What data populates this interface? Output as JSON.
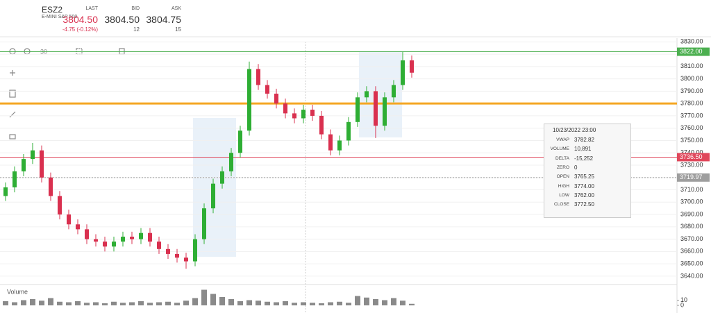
{
  "header": {
    "symbol": "ESZ2",
    "description": "E-MINI S&P 500",
    "last_label": "LAST",
    "last": "3804.50",
    "change": "-4.75 (-0.12%)",
    "bid_label": "BID",
    "bid": "3804.50",
    "bid_size": "12",
    "ask_label": "ASK",
    "ask": "3804.75",
    "ask_size": "15"
  },
  "toolbar": {
    "interval": "30"
  },
  "tooltip": {
    "date": "10/23/2022 23:00",
    "rows": [
      {
        "label": "VWAP",
        "value": "3782.82"
      },
      {
        "label": "VOLUME",
        "value": "10,891"
      },
      {
        "label": "DELTA",
        "value": "-15,252"
      },
      {
        "label": "ZERO",
        "value": "0"
      },
      {
        "label": "OPEN",
        "value": "3765.25"
      },
      {
        "label": "HIGH",
        "value": "3774.00"
      },
      {
        "label": "LOW",
        "value": "3762.00"
      },
      {
        "label": "CLOSE",
        "value": "3772.50"
      }
    ]
  },
  "chart_data": {
    "type": "candlestick",
    "up_color": "#2eae34",
    "down_color": "#d9304f",
    "open": [
      3705,
      3712,
      3725,
      3735,
      3742,
      3720,
      3705,
      3690,
      3682,
      3678,
      3670,
      3668,
      3664,
      3668,
      3672,
      3670,
      3675,
      3668,
      3662,
      3658,
      3655,
      3652,
      3670,
      3695,
      3715,
      3725,
      3740,
      3758,
      3808,
      3795,
      3788,
      3780,
      3772,
      3768,
      3775,
      3770,
      3755,
      3742,
      3750,
      3765,
      3785,
      3790,
      3762,
      3785,
      3795,
      3815
    ],
    "high": [
      3716,
      3729,
      3739,
      3748,
      3746,
      3724,
      3709,
      3694,
      3686,
      3682,
      3674,
      3672,
      3672,
      3676,
      3676,
      3679,
      3679,
      3672,
      3666,
      3662,
      3659,
      3674,
      3699,
      3719,
      3729,
      3744,
      3762,
      3814,
      3812,
      3799,
      3792,
      3784,
      3776,
      3779,
      3779,
      3774,
      3759,
      3754,
      3769,
      3789,
      3794,
      3794,
      3789,
      3799,
      3822,
      3819
    ],
    "low": [
      3701,
      3708,
      3721,
      3731,
      3716,
      3701,
      3686,
      3678,
      3674,
      3666,
      3664,
      3660,
      3660,
      3664,
      3666,
      3666,
      3664,
      3658,
      3654,
      3651,
      3646,
      3648,
      3666,
      3691,
      3711,
      3721,
      3736,
      3754,
      3791,
      3784,
      3776,
      3768,
      3764,
      3764,
      3766,
      3751,
      3738,
      3738,
      3746,
      3761,
      3781,
      3752,
      3758,
      3781,
      3791,
      3801
    ],
    "close": [
      3712,
      3725,
      3735,
      3742,
      3720,
      3705,
      3690,
      3682,
      3678,
      3670,
      3668,
      3664,
      3668,
      3672,
      3670,
      3675,
      3668,
      3662,
      3658,
      3655,
      3652,
      3670,
      3695,
      3715,
      3725,
      3740,
      3758,
      3808,
      3795,
      3788,
      3780,
      3772,
      3768,
      3775,
      3770,
      3755,
      3742,
      3750,
      3765,
      3785,
      3790,
      3762,
      3785,
      3795,
      3815,
      3805
    ],
    "volume_label": "Volume",
    "volume": [
      8,
      6,
      10,
      12,
      9,
      14,
      7,
      6,
      8,
      5,
      6,
      4,
      7,
      5,
      6,
      8,
      5,
      6,
      7,
      5,
      9,
      14,
      30,
      22,
      16,
      12,
      8,
      10,
      9,
      7,
      6,
      8,
      5,
      6,
      5,
      4,
      6,
      7,
      5,
      18,
      15,
      12,
      10,
      14,
      9,
      3
    ],
    "volume_color": "#8a8a8a",
    "volume_ylim": [
      0,
      40
    ],
    "volume_yticks": [
      0,
      10
    ],
    "ylim": [
      3636,
      3833
    ],
    "yticks": [
      {
        "value": 3640,
        "label": "3640.00"
      },
      {
        "value": 3650,
        "label": "3650.00"
      },
      {
        "value": 3660,
        "label": "3660.00"
      },
      {
        "value": 3670,
        "label": "3670.00"
      },
      {
        "value": 3680,
        "label": "3680.00"
      },
      {
        "value": 3690,
        "label": "3690.00"
      },
      {
        "value": 3700,
        "label": "3700.00"
      },
      {
        "value": 3710,
        "label": "3710.00"
      },
      {
        "value": 3720,
        "label": "3720.00"
      },
      {
        "value": 3730,
        "label": "3730.00"
      },
      {
        "value": 3740,
        "label": "3740.00"
      },
      {
        "value": 3750,
        "label": "3750.00"
      },
      {
        "value": 3760,
        "label": "3760.00"
      },
      {
        "value": 3770,
        "label": "3770.00"
      },
      {
        "value": 3780,
        "label": "3780.00"
      },
      {
        "value": 3790,
        "label": "3790.00"
      },
      {
        "value": 3800,
        "label": "3800.00"
      },
      {
        "value": 3810,
        "label": "3810.00"
      },
      {
        "value": 3820,
        "label": "3820.00"
      },
      {
        "value": 3830,
        "label": "3830.00"
      }
    ],
    "grid": true,
    "price_lines": [
      {
        "value": 3822,
        "label": "3822.00",
        "color": "#4caf50"
      },
      {
        "value": 3780,
        "color": "#f5a623"
      },
      {
        "value": 3736.5,
        "label": "3736.50",
        "color": "#e0475b"
      },
      {
        "value": 3719.97,
        "label": "3719.97",
        "color": "#9e9e9e"
      }
    ]
  }
}
